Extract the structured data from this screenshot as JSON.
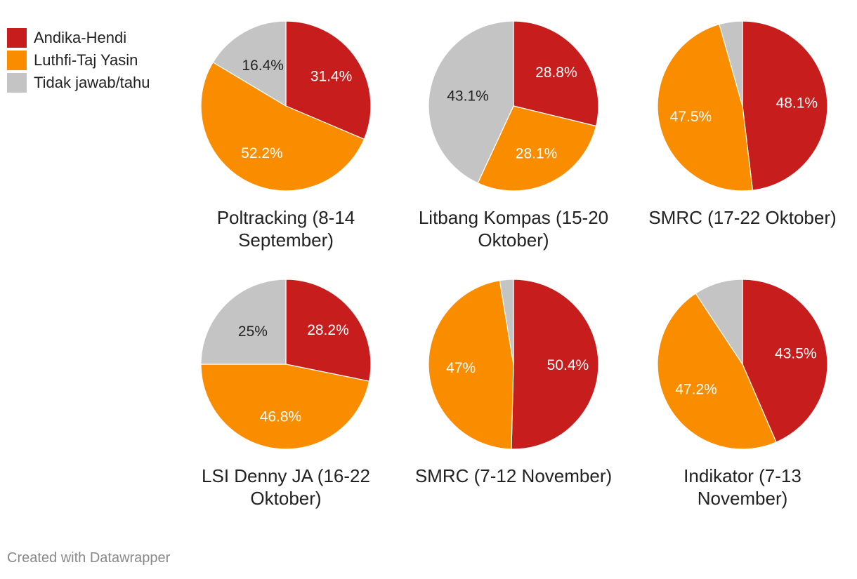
{
  "legend": [
    {
      "label": "Andika-Hendi",
      "color": "#c71e1d"
    },
    {
      "label": "Luthfi-Taj Yasin",
      "color": "#fa8c00"
    },
    {
      "label": "Tidak jawab/tahu",
      "color": "#c4c4c4"
    }
  ],
  "chart_data": [
    {
      "type": "pie",
      "title": "Poltracking (8-14 September)",
      "series": [
        "Andika-Hendi",
        "Luthfi-Taj Yasin",
        "Tidak jawab/tahu"
      ],
      "values": [
        31.4,
        52.2,
        16.4
      ],
      "labels": [
        "31.4%",
        "52.2%",
        "16.4%"
      ]
    },
    {
      "type": "pie",
      "title": "Litbang Kompas (15-20 Oktober)",
      "series": [
        "Andika-Hendi",
        "Luthfi-Taj Yasin",
        "Tidak jawab/tahu"
      ],
      "values": [
        28.8,
        28.1,
        43.1
      ],
      "labels": [
        "28.8%",
        "28.1%",
        "43.1%"
      ]
    },
    {
      "type": "pie",
      "title": "SMRC (17-22 Oktober)",
      "series": [
        "Andika-Hendi",
        "Luthfi-Taj Yasin",
        "Tidak jawab/tahu"
      ],
      "values": [
        48.1,
        47.5,
        4.4
      ],
      "labels": [
        "48.1%",
        "47.5%",
        ""
      ]
    },
    {
      "type": "pie",
      "title": "LSI Denny JA (16-22 Oktober)",
      "series": [
        "Andika-Hendi",
        "Luthfi-Taj Yasin",
        "Tidak jawab/tahu"
      ],
      "values": [
        28.2,
        46.8,
        25
      ],
      "labels": [
        "28.2%",
        "46.8%",
        "25%"
      ]
    },
    {
      "type": "pie",
      "title": "SMRC (7-12 November)",
      "series": [
        "Andika-Hendi",
        "Luthfi-Taj Yasin",
        "Tidak jawab/tahu"
      ],
      "values": [
        50.4,
        47,
        2.6
      ],
      "labels": [
        "50.4%",
        "47%",
        ""
      ]
    },
    {
      "type": "pie",
      "title": "Indikator (7-13 November)",
      "series": [
        "Andika-Hendi",
        "Luthfi-Taj Yasin",
        "Tidak jawab/tahu"
      ],
      "values": [
        43.5,
        47.2,
        9.3
      ],
      "labels": [
        "43.5%",
        "47.2%",
        ""
      ]
    }
  ],
  "credit": "Created with Datawrapper"
}
